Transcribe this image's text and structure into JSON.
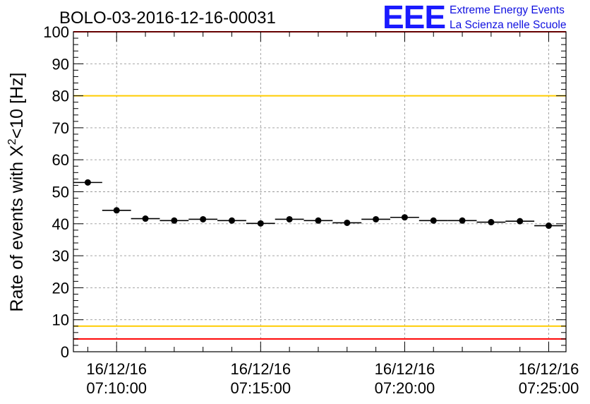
{
  "chart_data": {
    "type": "scatter",
    "title": "BOLO-03-2016-12-16-00031",
    "ylabel_parts": {
      "prefix": "Rate of events with X",
      "superscript": "2",
      "suffix": "<10 [Hz]"
    },
    "ylim": [
      0,
      100
    ],
    "y_ticks": [
      0,
      10,
      20,
      30,
      40,
      50,
      60,
      70,
      80,
      90,
      100
    ],
    "y_tick_labels": [
      "0",
      "10",
      "20",
      "30",
      "40",
      "50",
      "60",
      "70",
      "80",
      "90",
      "100"
    ],
    "x_unit": "minutes after 16/12/16 07:00:00",
    "xlim": [
      8.5,
      25.6
    ],
    "x_ticks": [
      10,
      15,
      20,
      25
    ],
    "x_tick_labels": [
      {
        "date": "16/12/16",
        "time": "07:10:00"
      },
      {
        "date": "16/12/16",
        "time": "07:15:00"
      },
      {
        "date": "16/12/16",
        "time": "07:20:00"
      },
      {
        "date": "16/12/16",
        "time": "07:25:00"
      }
    ],
    "bin_width": 1.0,
    "x": [
      9.0,
      10.0,
      11.0,
      12.0,
      13.0,
      14.0,
      15.0,
      16.0,
      17.0,
      18.0,
      19.0,
      20.0,
      21.0,
      22.0,
      23.0,
      24.0,
      25.0
    ],
    "values": [
      52.9,
      44.2,
      41.6,
      41.0,
      41.4,
      41.0,
      40.1,
      41.4,
      41.0,
      40.3,
      41.4,
      42.0,
      41.0,
      41.0,
      40.5,
      40.8,
      39.4
    ],
    "reference_lines": [
      {
        "y": 100,
        "color": "#ff0000"
      },
      {
        "y": 80,
        "color": "#ffcc00"
      },
      {
        "y": 8,
        "color": "#ffcc00"
      },
      {
        "y": 4,
        "color": "#ff0000"
      }
    ],
    "grid": true,
    "colors": {
      "marker": "#000000",
      "grid": "#999999"
    }
  },
  "logo": {
    "mark": "EEE",
    "line1": "Extreme Energy Events",
    "line2": "La Scienza nelle Scuole"
  }
}
